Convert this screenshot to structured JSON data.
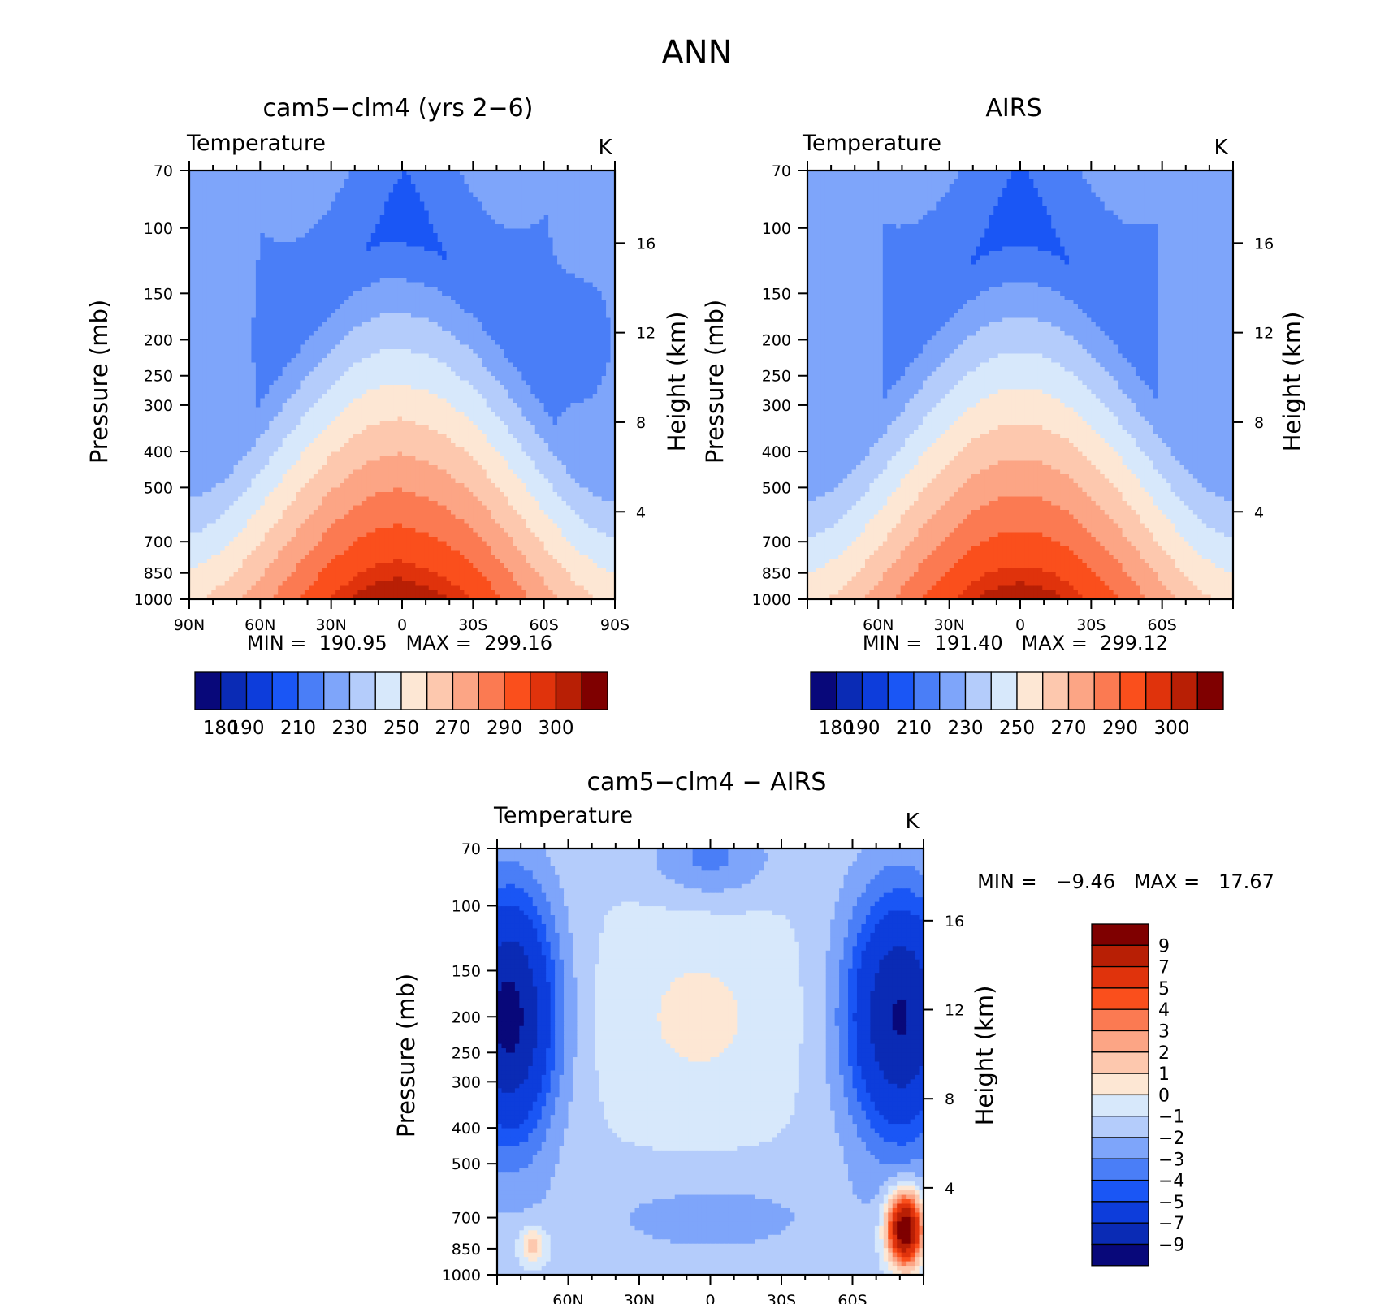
{
  "page_title": "ANN",
  "chart_data": [
    {
      "type": "heatmap",
      "title": "cam5−clm4 (yrs 2−6)",
      "subtitle": "Temperature",
      "units": "K",
      "ylabel": "Pressure (mb)",
      "ylabel_right": "Height (km)",
      "y_ticks": [
        "70",
        "100",
        "150",
        "200",
        "250",
        "300",
        "400",
        "500",
        "700",
        "850",
        "1000"
      ],
      "y_tick_values": [
        70,
        100,
        150,
        200,
        250,
        300,
        400,
        500,
        700,
        850,
        1000
      ],
      "right_ticks": [
        "4",
        "8",
        "12",
        "16"
      ],
      "right_tick_values": [
        4,
        8,
        12,
        16
      ],
      "x_ticks": [
        "90N",
        "60N",
        "30N",
        "0",
        "30S",
        "60S",
        "90S"
      ],
      "x_tick_values": [
        90,
        60,
        30,
        0,
        -30,
        -60,
        -90
      ],
      "stats": "MIN =  190.95   MAX =  299.16",
      "colorbar_labels": [
        "180",
        "190",
        "210",
        "230",
        "250",
        "270",
        "290",
        "300"
      ],
      "field": "model",
      "min": 190.95,
      "max": 299.16
    },
    {
      "type": "heatmap",
      "title": "AIRS",
      "subtitle": "Temperature",
      "units": "K",
      "ylabel": "Pressure (mb)",
      "ylabel_right": "Height (km)",
      "y_ticks": [
        "70",
        "100",
        "150",
        "200",
        "250",
        "300",
        "400",
        "500",
        "700",
        "850",
        "1000"
      ],
      "y_tick_values": [
        70,
        100,
        150,
        200,
        250,
        300,
        400,
        500,
        700,
        850,
        1000
      ],
      "right_ticks": [
        "4",
        "8",
        "12",
        "16"
      ],
      "right_tick_values": [
        4,
        8,
        12,
        16
      ],
      "x_ticks": [
        "60N",
        "30N",
        "0",
        "30S",
        "60S"
      ],
      "x_tick_values": [
        60,
        30,
        0,
        -30,
        -60
      ],
      "stats": "MIN =  191.40   MAX =  299.12",
      "colorbar_labels": [
        "180",
        "190",
        "210",
        "230",
        "250",
        "270",
        "290",
        "300"
      ],
      "field": "obs",
      "min": 191.4,
      "max": 299.12
    },
    {
      "type": "heatmap",
      "title": "cam5−clm4 − AIRS",
      "subtitle": "Temperature",
      "units": "K",
      "ylabel": "Pressure (mb)",
      "ylabel_right": "Height (km)",
      "y_ticks": [
        "70",
        "100",
        "150",
        "200",
        "250",
        "300",
        "400",
        "500",
        "700",
        "850",
        "1000"
      ],
      "y_tick_values": [
        70,
        100,
        150,
        200,
        250,
        300,
        400,
        500,
        700,
        850,
        1000
      ],
      "right_ticks": [
        "4",
        "8",
        "12",
        "16"
      ],
      "right_tick_values": [
        4,
        8,
        12,
        16
      ],
      "x_ticks": [
        "60N",
        "30N",
        "0",
        "30S",
        "60S"
      ],
      "x_tick_values": [
        60,
        30,
        0,
        -30,
        -60
      ],
      "stats": "MIN =   −9.46   MAX =   17.67",
      "colorbar_labels": [
        "9",
        "7",
        "5",
        "4",
        "3",
        "2",
        "1",
        "0",
        "−1",
        "−2",
        "−3",
        "−4",
        "−5",
        "−7",
        "−9"
      ],
      "field": "diff",
      "min": -9.46,
      "max": 17.67
    }
  ],
  "colormap_abs": [
    "#08087a",
    "#0a2bb5",
    "#0d3ddb",
    "#1a56f5",
    "#4a7ef7",
    "#7ea5fa",
    "#b4ccfb",
    "#d7e8fb",
    "#fde7d4",
    "#fdc8ae",
    "#fca585",
    "#fb7a52",
    "#fa4f1c",
    "#e0330c",
    "#b81f05",
    "#7f0000"
  ],
  "colormap_abs_levels": [
    180,
    185,
    190,
    200,
    210,
    220,
    230,
    240,
    250,
    260,
    270,
    280,
    290,
    295,
    300
  ],
  "colormap_diff": [
    "#08087a",
    "#0a2bb5",
    "#0d3ddb",
    "#1a56f5",
    "#4a7ef7",
    "#7ea5fa",
    "#b4ccfb",
    "#d7e8fb",
    "#fde7d4",
    "#fdc8ae",
    "#fca585",
    "#fb7a52",
    "#fa4f1c",
    "#e0330c",
    "#b81f05",
    "#7f0000"
  ],
  "colormap_diff_levels": [
    -9,
    -7,
    -5,
    -4,
    -3,
    -2,
    -1,
    0,
    1,
    2,
    3,
    4,
    5,
    7,
    9
  ]
}
